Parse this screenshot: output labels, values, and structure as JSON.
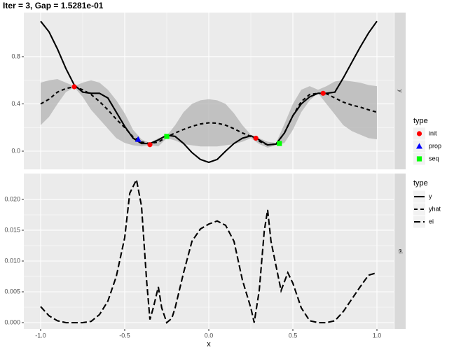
{
  "chart_data": [
    {
      "type": "line",
      "title": "Iter = 3, Gap = 1.5281e-01",
      "strip": "y",
      "legend_title": "type",
      "x": [
        -1,
        -0.95,
        -0.9,
        -0.85,
        -0.8,
        -0.75,
        -0.7,
        -0.65,
        -0.6,
        -0.55,
        -0.5,
        -0.45,
        -0.4,
        -0.35,
        -0.3,
        -0.25,
        -0.2,
        -0.15,
        -0.1,
        -0.05,
        0,
        0.05,
        0.1,
        0.15,
        0.2,
        0.25,
        0.3,
        0.35,
        0.4,
        0.45,
        0.5,
        0.55,
        0.6,
        0.65,
        0.7,
        0.75,
        0.8,
        0.85,
        0.9,
        0.95,
        1
      ],
      "series": [
        {
          "name": "y",
          "color": "#000000",
          "linetype": "solid",
          "values": [
            1.1,
            1.01,
            0.865,
            0.7,
            0.56,
            0.5,
            0.49,
            0.49,
            0.45,
            0.33,
            0.21,
            0.11,
            0.065,
            0.065,
            0.095,
            0.136,
            0.125,
            0.065,
            -0.012,
            -0.07,
            -0.095,
            -0.07,
            0,
            0.065,
            0.11,
            0.13,
            0.095,
            0.053,
            0.06,
            0.154,
            0.3,
            0.4,
            0.46,
            0.49,
            0.49,
            0.5,
            0.62,
            0.75,
            0.88,
            1.0,
            1.1
          ]
        },
        {
          "name": "yhat",
          "color": "#000000",
          "linetype": "dashed",
          "values": [
            0.4,
            0.44,
            0.5,
            0.53,
            0.545,
            0.52,
            0.48,
            0.42,
            0.35,
            0.27,
            0.2,
            0.12,
            0.077,
            0.065,
            0.077,
            0.12,
            0.154,
            0.184,
            0.21,
            0.23,
            0.24,
            0.237,
            0.22,
            0.19,
            0.154,
            0.125,
            0.083,
            0.053,
            0.06,
            0.154,
            0.3,
            0.42,
            0.48,
            0.49,
            0.486,
            0.45,
            0.415,
            0.39,
            0.373,
            0.35,
            0.33
          ]
        }
      ],
      "band": {
        "color": "#b3b3b3",
        "lower": [
          0.22,
          0.29,
          0.4,
          0.5,
          0.54,
          0.46,
          0.35,
          0.27,
          0.19,
          0.11,
          0.07,
          0.05,
          0.04,
          0.05,
          0.04,
          0.11,
          0.09,
          0.06,
          0.05,
          0.04,
          0.04,
          0.04,
          0.05,
          0.06,
          0.08,
          0.11,
          0.06,
          0.03,
          0.05,
          0.07,
          0.18,
          0.33,
          0.43,
          0.49,
          0.4,
          0.31,
          0.22,
          0.17,
          0.14,
          0.11,
          0.1
        ],
        "upper": [
          0.58,
          0.6,
          0.61,
          0.58,
          0.55,
          0.58,
          0.6,
          0.58,
          0.52,
          0.43,
          0.32,
          0.18,
          0.1,
          0.07,
          0.11,
          0.13,
          0.22,
          0.33,
          0.4,
          0.43,
          0.44,
          0.43,
          0.4,
          0.32,
          0.22,
          0.14,
          0.11,
          0.08,
          0.07,
          0.23,
          0.4,
          0.52,
          0.55,
          0.52,
          0.55,
          0.59,
          0.6,
          0.59,
          0.58,
          0.56,
          0.55
        ]
      },
      "points": [
        {
          "name": "init",
          "color": "#ff0000",
          "shape": "circle",
          "x": [
            -0.8,
            -0.35,
            0.28,
            0.68
          ],
          "y": [
            0.545,
            0.055,
            0.11,
            0.49
          ]
        },
        {
          "name": "prop",
          "color": "#0000ff",
          "shape": "triangle",
          "x": [
            -0.42
          ],
          "y": [
            0.1
          ]
        },
        {
          "name": "seq",
          "color": "#00ff00",
          "shape": "square",
          "x": [
            -0.25,
            0.42
          ],
          "y": [
            0.125,
            0.065
          ]
        }
      ],
      "xlim": [
        -1.1,
        1.1
      ],
      "xticks": [
        -1,
        -0.5,
        0,
        0.5,
        1
      ],
      "ylim": [
        -0.154,
        1.173
      ],
      "yticks": [
        {
          "value": 0,
          "label": "0.0"
        },
        0.4,
        0.8
      ],
      "grid": true
    },
    {
      "type": "line",
      "strip": "ei",
      "legend_title": "type",
      "xlabel": "x",
      "x": [
        -1,
        -0.95,
        -0.9,
        -0.85,
        -0.8,
        -0.75,
        -0.7,
        -0.65,
        -0.6,
        -0.55,
        -0.5,
        -0.47,
        -0.43,
        -0.4,
        -0.37,
        -0.35,
        -0.33,
        -0.3,
        -0.28,
        -0.25,
        -0.22,
        -0.2,
        -0.15,
        -0.1,
        -0.05,
        0,
        0.05,
        0.1,
        0.15,
        0.2,
        0.25,
        0.27,
        0.3,
        0.33,
        0.35,
        0.37,
        0.4,
        0.43,
        0.47,
        0.5,
        0.55,
        0.6,
        0.65,
        0.7,
        0.75,
        0.8,
        0.85,
        0.9,
        0.95,
        1
      ],
      "series": [
        {
          "name": "ei",
          "color": "#000000",
          "linetype": "longdash",
          "values": [
            0.0026,
            0.0011,
            0.0003,
            0,
            0,
            0,
            0.0002,
            0.0013,
            0.0035,
            0.0075,
            0.0138,
            0.021,
            0.0232,
            0.0189,
            0.0069,
            0.0005,
            0.0024,
            0.0058,
            0.0024,
            0,
            0.0007,
            0.0024,
            0.0081,
            0.0132,
            0.0152,
            0.016,
            0.0165,
            0.0158,
            0.0132,
            0.0069,
            0.0024,
            0,
            0.0052,
            0.0149,
            0.0183,
            0.0132,
            0.0092,
            0.0052,
            0.0081,
            0.0064,
            0.0024,
            0.0003,
            0,
            0,
            0.0003,
            0.0018,
            0.0038,
            0.0058,
            0.0077,
            0.0081
          ]
        }
      ],
      "xlim": [
        -1.1,
        1.1
      ],
      "xticks": [
        {
          "value": -1,
          "label": "-1.0"
        },
        -0.5,
        {
          "value": 0,
          "label": "0.0"
        },
        0.5,
        {
          "value": 1,
          "label": "1.0"
        }
      ],
      "ylim": [
        -0.00102,
        0.0242
      ],
      "yticks": [
        {
          "value": 0,
          "label": "0.000"
        },
        0.005,
        {
          "value": 0.01,
          "label": "0.010"
        },
        0.015,
        {
          "value": 0.02,
          "label": "0.020"
        }
      ],
      "grid": true
    }
  ]
}
